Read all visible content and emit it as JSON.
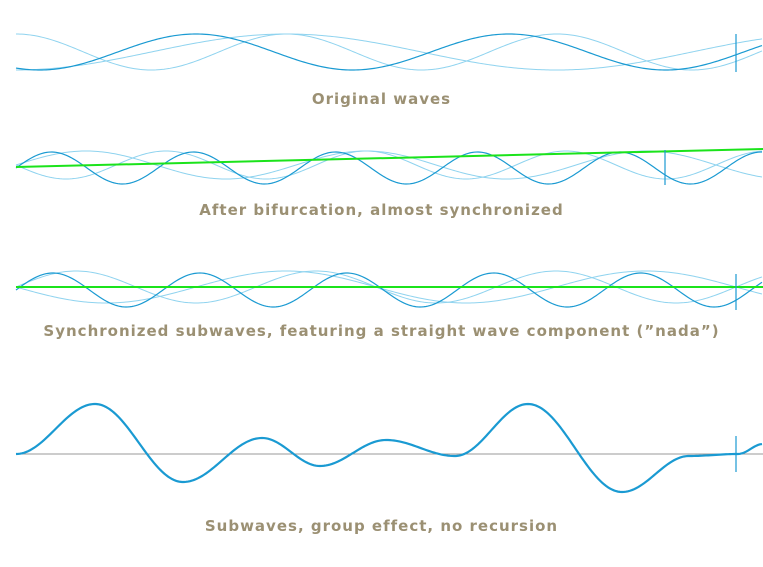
{
  "colors": {
    "wave_dark": "#1a9ad2",
    "wave_light": "#8fd3ef",
    "straight_wave": "#1be31b",
    "baseline": "#9a9a9a",
    "caption": "#9b9073"
  },
  "panels": [
    {
      "caption": "Original waves"
    },
    {
      "caption": "After bifurcation, almost synchronized"
    },
    {
      "caption": "Synchronized subwaves, featuring a straight wave component (”nada”)"
    },
    {
      "caption": "Subwaves, group effect, no recursion"
    }
  ]
}
